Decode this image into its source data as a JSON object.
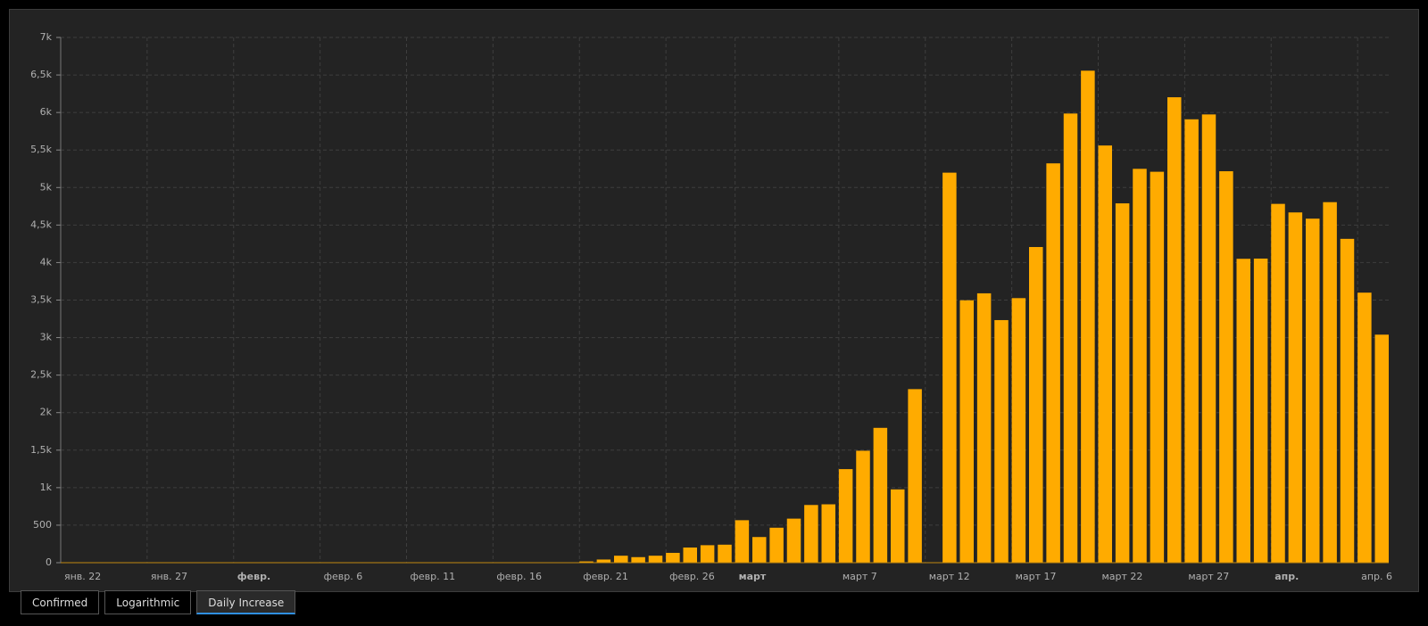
{
  "chart_data": {
    "type": "bar",
    "categories": [
      "янв. 22",
      null,
      null,
      null,
      null,
      "янв. 27",
      null,
      null,
      null,
      null,
      "февр.",
      null,
      null,
      null,
      null,
      "февр. 6",
      null,
      null,
      null,
      null,
      "февр. 11",
      null,
      null,
      null,
      null,
      "февр. 16",
      null,
      null,
      null,
      null,
      "февр. 21",
      null,
      null,
      null,
      null,
      "февр. 26",
      null,
      null,
      null,
      "март",
      null,
      null,
      null,
      null,
      null,
      "март 7",
      null,
      null,
      null,
      null,
      "март 12",
      null,
      null,
      null,
      null,
      "март 17",
      null,
      null,
      null,
      null,
      "март 22",
      null,
      null,
      null,
      null,
      "март 27",
      null,
      null,
      null,
      null,
      "апр.",
      null,
      null,
      null,
      null,
      "апр. 6",
      null
    ],
    "values": [
      0,
      0,
      0,
      0,
      0,
      0,
      0,
      0,
      0,
      2,
      0,
      0,
      0,
      0,
      0,
      0,
      1,
      0,
      0,
      0,
      0,
      0,
      0,
      0,
      0,
      0,
      0,
      0,
      0,
      0,
      17,
      42,
      93,
      74,
      93,
      131,
      202,
      233,
      240,
      566,
      342,
      466,
      587,
      769,
      778,
      1247,
      1492,
      1797,
      977,
      2313,
      0,
      5198,
      3497,
      3590,
      3233,
      3526,
      4207,
      5322,
      5986,
      6557,
      5560,
      4789,
      5249,
      5210,
      6203,
      5909,
      5974,
      5217,
      4050,
      4053,
      4782,
      4668,
      4585,
      4805,
      4316,
      3599,
      3039
    ],
    "color": "#ffab00",
    "ylim": [
      0,
      7000
    ],
    "yticks": [
      0,
      500,
      {
        "value": 1000,
        "label": "1k"
      },
      {
        "value": 1500,
        "label": "1,5k"
      },
      {
        "value": 2000,
        "label": "2k"
      },
      {
        "value": 2500,
        "label": "2,5k"
      },
      {
        "value": 3000,
        "label": "3k"
      },
      {
        "value": 3500,
        "label": "3,5k"
      },
      {
        "value": 4000,
        "label": "4k"
      },
      {
        "value": 4500,
        "label": "4,5k"
      },
      {
        "value": 5000,
        "label": "5k"
      },
      {
        "value": 5500,
        "label": "5,5k"
      },
      {
        "value": 6000,
        "label": "6k"
      },
      {
        "value": 6500,
        "label": "6,5k"
      },
      {
        "value": 7000,
        "label": "7k"
      }
    ],
    "grid": true
  },
  "tabs": [
    "Confirmed",
    "Logarithmic",
    "Daily Increase"
  ]
}
